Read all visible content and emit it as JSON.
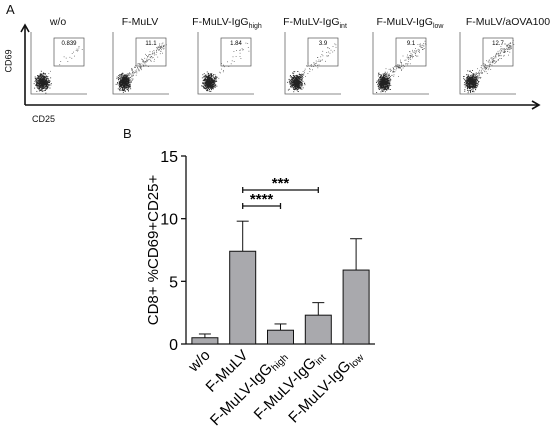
{
  "panel_a": {
    "letter": "A",
    "y_label": "CD69",
    "x_label": "CD25",
    "plots": [
      {
        "title": "w/o",
        "sub": "",
        "gate_value": "0.839",
        "gate_pct": 0.839
      },
      {
        "title": "F-MuLV",
        "sub": "",
        "gate_value": "11.1",
        "gate_pct": 11.1
      },
      {
        "title": "F-MuLV-IgG",
        "sub": "high",
        "gate_value": "1.84",
        "gate_pct": 1.84
      },
      {
        "title": "F-MuLV-IgG",
        "sub": "int",
        "gate_value": "3.9",
        "gate_pct": 3.9
      },
      {
        "title": "F-MuLV-IgG",
        "sub": "low",
        "gate_value": "9.1",
        "gate_pct": 9.1
      },
      {
        "title": "F-MuLV/aOVA100",
        "sub": "",
        "gate_value": "12.7",
        "gate_pct": 12.7
      }
    ]
  },
  "panel_b": {
    "letter": "B"
  },
  "chart_data": {
    "type": "bar",
    "title": "",
    "ylabel": "CD8+ %CD69+CD25+",
    "xlabel": "",
    "ylim": [
      0,
      15
    ],
    "yticks": [
      "0",
      "5",
      "10",
      "15"
    ],
    "ytick_values": [
      0,
      5,
      10,
      15
    ],
    "categories": [
      {
        "main": "w/o",
        "sub": ""
      },
      {
        "main": "F-MuLV",
        "sub": ""
      },
      {
        "main": "F-MuLV-IgG",
        "sub": "high"
      },
      {
        "main": "F-MuLV-IgG",
        "sub": "int"
      },
      {
        "main": "F-MuLV-IgG",
        "sub": "low"
      }
    ],
    "values": [
      0.5,
      7.4,
      1.1,
      2.3,
      5.9
    ],
    "errors": [
      0.3,
      2.4,
      0.5,
      1.0,
      2.5
    ],
    "bar_color": "#a9a9ad",
    "significance": [
      {
        "from": 1,
        "to": 3,
        "label": "***"
      },
      {
        "from": 1,
        "to": 2,
        "label": "****"
      }
    ]
  }
}
